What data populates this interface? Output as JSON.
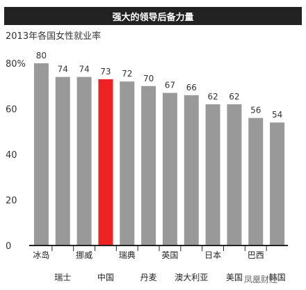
{
  "chart_data": {
    "type": "bar",
    "title": "强大的领导后备力量",
    "subtitle": "2013年各国女性就业率",
    "categories": [
      "冰岛",
      "瑞士",
      "挪威",
      "中国",
      "瑞典",
      "丹麦",
      "英国",
      "澳大利亚",
      "日本",
      "美国",
      "巴西",
      "韩国"
    ],
    "values": [
      80,
      74,
      74,
      73,
      72,
      70,
      67,
      66,
      62,
      62,
      56,
      54
    ],
    "highlight_index": 3,
    "ylim": [
      0,
      80
    ],
    "yticks": [
      0,
      20,
      40,
      60,
      80
    ],
    "ytick_labels": [
      "0",
      "20",
      "40",
      "60",
      "80%"
    ],
    "xlabel": "",
    "ylabel": "",
    "grid": false,
    "colors": {
      "bar": "#999999",
      "highlight": "#ee2222",
      "axis": "#222222"
    }
  },
  "watermark": "凤凰财经"
}
